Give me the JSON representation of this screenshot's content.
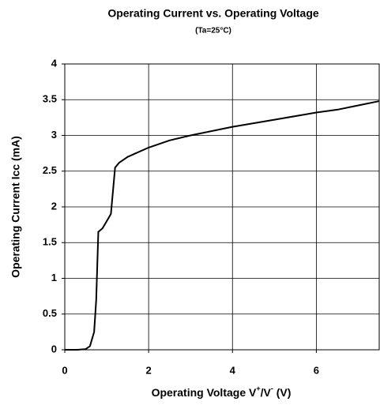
{
  "chart_data": {
    "type": "line",
    "title": "Operating Current vs. Operating Voltage",
    "subtitle": "(Ta=25°C)",
    "x_label": [
      "Operating Voltage V",
      "+",
      "/V",
      "-",
      " (V)"
    ],
    "y_label": "Operating Current Icc (mA)",
    "x": [
      0,
      0.3,
      0.5,
      0.6,
      0.7,
      0.75,
      0.8,
      0.9,
      1.0,
      1.1,
      1.2,
      1.3,
      1.5,
      2.0,
      2.5,
      3.0,
      4.0,
      5.0,
      6.0,
      6.5,
      7.0,
      7.5
    ],
    "series": [
      {
        "name": "Icc",
        "color": "#000000",
        "values": [
          0,
          0,
          0.01,
          0.05,
          0.25,
          0.7,
          1.65,
          1.7,
          1.8,
          1.9,
          2.55,
          2.62,
          2.7,
          2.83,
          2.93,
          3.0,
          3.12,
          3.22,
          3.32,
          3.36,
          3.42,
          3.48
        ]
      }
    ],
    "xlim": [
      0,
      7.5
    ],
    "xticks": [
      0,
      2,
      4,
      6
    ],
    "ylim": [
      0,
      4
    ],
    "yticks": [
      0,
      0.5,
      1,
      1.5,
      2,
      2.5,
      3,
      3.5,
      4
    ],
    "grid": true
  }
}
